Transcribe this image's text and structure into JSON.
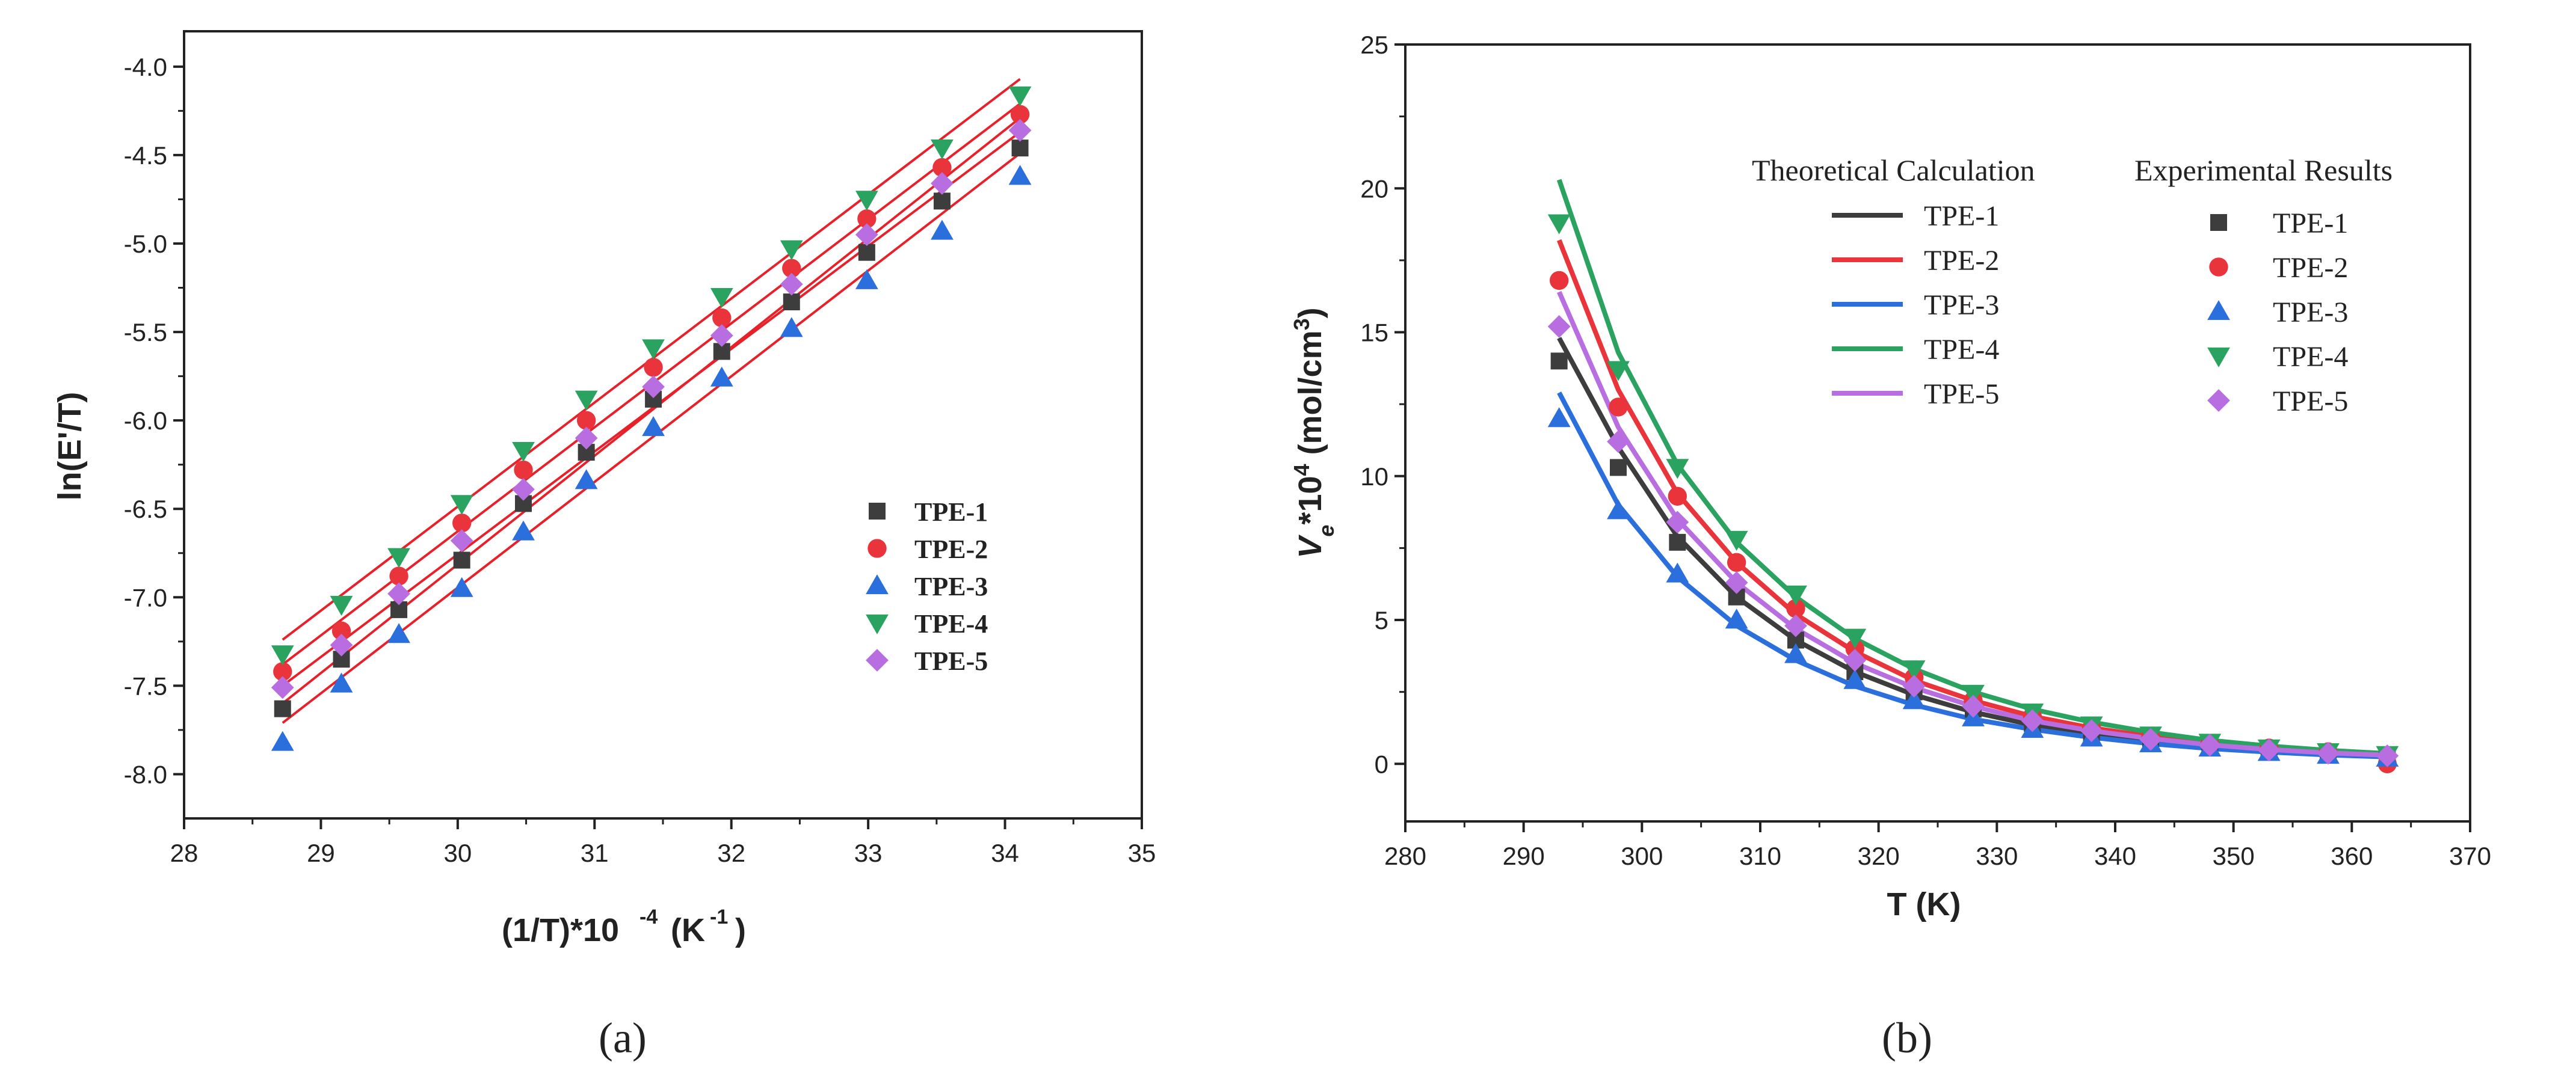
{
  "figure": {
    "panel_labels": [
      "(a)",
      "(b)"
    ]
  },
  "chart_data": [
    {
      "type": "scatter",
      "panel": "(a)",
      "xlabel": "(1/T)*10^-4 (K^-1)",
      "ylabel": "ln(E'/T)",
      "xlim": [
        28,
        35
      ],
      "ylim": [
        -8.25,
        -3.8
      ],
      "x_ticks": [
        28,
        29,
        30,
        31,
        32,
        33,
        34,
        35
      ],
      "y_ticks": [
        -4.0,
        -4.5,
        -5.0,
        -5.5,
        -6.0,
        -6.5,
        -7.0,
        -7.5,
        -8.0
      ],
      "x_tick_labels": [
        "28",
        "29",
        "30",
        "31",
        "32",
        "33",
        "34",
        "35"
      ],
      "y_tick_labels": [
        "-4.0",
        "-4.5",
        "-5.0",
        "-5.5",
        "-6.0",
        "-6.5",
        "-7.0",
        "-7.5",
        "-8.0"
      ],
      "grid": false,
      "legend_position": "bottom-right",
      "fit_lines": "linear fit per series (red)",
      "fit_color": "#e8202a",
      "x": [
        28.72,
        29.15,
        29.57,
        30.03,
        30.48,
        30.94,
        31.43,
        31.93,
        32.44,
        32.99,
        33.54,
        34.11
      ],
      "series": [
        {
          "name": "TPE-1",
          "marker": "square",
          "color": "#3d3d3d",
          "values": [
            -7.63,
            -7.35,
            -7.07,
            -6.79,
            -6.47,
            -6.18,
            -5.88,
            -5.61,
            -5.33,
            -5.05,
            -4.76,
            -4.46
          ],
          "fit": [
            -7.5,
            -4.37
          ]
        },
        {
          "name": "TPE-2",
          "marker": "circle",
          "color": "#e8343a",
          "values": [
            -7.42,
            -7.19,
            -6.88,
            -6.58,
            -6.28,
            -6.0,
            -5.7,
            -5.42,
            -5.14,
            -4.86,
            -4.57,
            -4.27
          ],
          "fit": [
            -7.38,
            -4.21
          ]
        },
        {
          "name": "TPE-3",
          "marker": "triangle-up",
          "color": "#2a6fdc",
          "values": [
            -7.82,
            -7.49,
            -7.21,
            -6.95,
            -6.63,
            -6.34,
            -6.04,
            -5.76,
            -5.48,
            -5.21,
            -4.93,
            -4.62
          ],
          "fit": [
            -7.71,
            -4.49
          ]
        },
        {
          "name": "TPE-4",
          "marker": "triangle-down",
          "color": "#2aa360",
          "values": [
            -7.32,
            -7.04,
            -6.77,
            -6.47,
            -6.17,
            -5.88,
            -5.59,
            -5.3,
            -5.03,
            -4.75,
            -4.46,
            -4.16
          ],
          "fit": [
            -7.24,
            -4.07
          ]
        },
        {
          "name": "TPE-5",
          "marker": "diamond",
          "color": "#b86de0",
          "values": [
            -7.51,
            -7.27,
            -6.98,
            -6.68,
            -6.39,
            -6.1,
            -5.81,
            -5.52,
            -5.23,
            -4.95,
            -4.66,
            -4.36
          ],
          "fit": [
            -7.6,
            -4.29
          ]
        }
      ]
    },
    {
      "type": "line",
      "panel": "(b)",
      "xlabel": "T (K)",
      "ylabel": "Ve*10^4 (mol/cm^3)",
      "xlim": [
        280,
        370
      ],
      "ylim": [
        -2,
        25
      ],
      "x_ticks": [
        280,
        290,
        300,
        310,
        320,
        330,
        340,
        350,
        360,
        370
      ],
      "y_ticks": [
        0,
        5,
        10,
        15,
        20,
        25
      ],
      "x_tick_labels": [
        "280",
        "290",
        "300",
        "310",
        "320",
        "330",
        "340",
        "350",
        "360",
        "370"
      ],
      "y_tick_labels": [
        "0",
        "5",
        "10",
        "15",
        "20",
        "25"
      ],
      "grid": false,
      "legend_position": "top-right",
      "legend_titles": [
        "Theoretical Calculation",
        "Experimental Results"
      ],
      "x": [
        293,
        298,
        303,
        308,
        313,
        318,
        323,
        328,
        333,
        338,
        343,
        348,
        353,
        358,
        363
      ],
      "theoretical": [
        {
          "name": "TPE-1",
          "color": "#3d3d3d",
          "values": [
            14.8,
            11.0,
            7.9,
            5.8,
            4.3,
            3.2,
            2.4,
            1.8,
            1.35,
            1.05,
            0.8,
            0.6,
            0.45,
            0.35,
            0.28
          ]
        },
        {
          "name": "TPE-2",
          "color": "#e8343a",
          "values": [
            18.2,
            13.0,
            9.4,
            7.0,
            5.2,
            3.9,
            2.9,
            2.2,
            1.65,
            1.25,
            0.95,
            0.72,
            0.55,
            0.42,
            0.33
          ]
        },
        {
          "name": "TPE-3",
          "color": "#2a6fdc",
          "values": [
            12.9,
            9.0,
            6.5,
            4.8,
            3.6,
            2.7,
            2.05,
            1.55,
            1.2,
            0.92,
            0.7,
            0.53,
            0.41,
            0.31,
            0.24
          ]
        },
        {
          "name": "TPE-4",
          "color": "#2aa360",
          "values": [
            20.3,
            14.3,
            10.4,
            7.7,
            5.8,
            4.35,
            3.3,
            2.5,
            1.9,
            1.45,
            1.1,
            0.82,
            0.62,
            0.47,
            0.36
          ]
        },
        {
          "name": "TPE-5",
          "color": "#b86de0",
          "values": [
            16.4,
            11.7,
            8.5,
            6.3,
            4.7,
            3.5,
            2.65,
            2.0,
            1.5,
            1.15,
            0.88,
            0.66,
            0.5,
            0.38,
            0.3
          ]
        }
      ],
      "experimental": [
        {
          "name": "TPE-1",
          "marker": "square",
          "color": "#3d3d3d",
          "values": [
            14.0,
            10.3,
            7.7,
            5.8,
            4.3,
            3.2,
            2.5,
            1.9,
            1.4,
            1.05,
            0.8,
            0.6,
            0.45,
            0.35,
            0.25
          ]
        },
        {
          "name": "TPE-2",
          "marker": "circle",
          "color": "#e8343a",
          "values": [
            16.8,
            12.4,
            9.3,
            7.0,
            5.4,
            4.0,
            3.0,
            2.2,
            1.65,
            1.25,
            0.95,
            0.7,
            0.55,
            0.42,
            0.0
          ]
        },
        {
          "name": "TPE-3",
          "marker": "triangle-up",
          "color": "#2a6fdc",
          "values": [
            12.0,
            8.8,
            6.6,
            5.0,
            3.8,
            2.9,
            2.2,
            1.6,
            1.2,
            0.9,
            0.7,
            0.55,
            0.4,
            0.3,
            0.2
          ]
        },
        {
          "name": "TPE-4",
          "marker": "triangle-down",
          "color": "#2aa360",
          "values": [
            18.8,
            13.7,
            10.3,
            7.8,
            5.9,
            4.4,
            3.3,
            2.45,
            1.8,
            1.35,
            1.0,
            0.75,
            0.55,
            0.42,
            0.32
          ]
        },
        {
          "name": "TPE-5",
          "marker": "diamond",
          "color": "#b86de0",
          "values": [
            15.2,
            11.2,
            8.4,
            6.3,
            4.8,
            3.6,
            2.7,
            2.0,
            1.5,
            1.15,
            0.85,
            0.65,
            0.48,
            0.37,
            0.28
          ]
        }
      ]
    }
  ]
}
